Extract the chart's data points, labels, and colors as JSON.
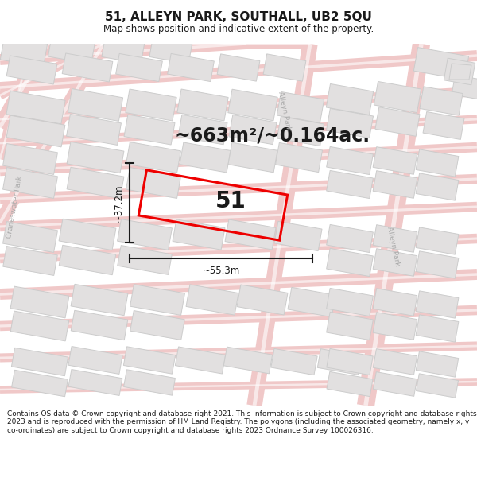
{
  "title": "51, ALLEYN PARK, SOUTHALL, UB2 5QU",
  "subtitle": "Map shows position and indicative extent of the property.",
  "area_label": "~663m²/~0.164ac.",
  "property_number": "51",
  "width_label": "~55.3m",
  "height_label": "~37.2m",
  "footer": "Contains OS data © Crown copyright and database right 2021. This information is subject to Crown copyright and database rights 2023 and is reproduced with the permission of HM Land Registry. The polygons (including the associated geometry, namely x, y co-ordinates) are subject to Crown copyright and database rights 2023 Ordnance Survey 100026316.",
  "map_bg": "#f7f5f5",
  "road_color": "#f0c8c8",
  "road_center": "#ffffff",
  "building_fill": "#e2e0e0",
  "building_edge": "#cccccc",
  "highlight_color": "#ee0000",
  "text_dark": "#1a1a1a",
  "text_road": "#aaaaaa",
  "footer_text": "#1a1a1a",
  "title_fontsize": 11,
  "subtitle_fontsize": 8.5,
  "area_fontsize": 17,
  "num_fontsize": 20,
  "dim_fontsize": 8.5,
  "road_label_fontsize": 6.5,
  "footer_fontsize": 6.5
}
